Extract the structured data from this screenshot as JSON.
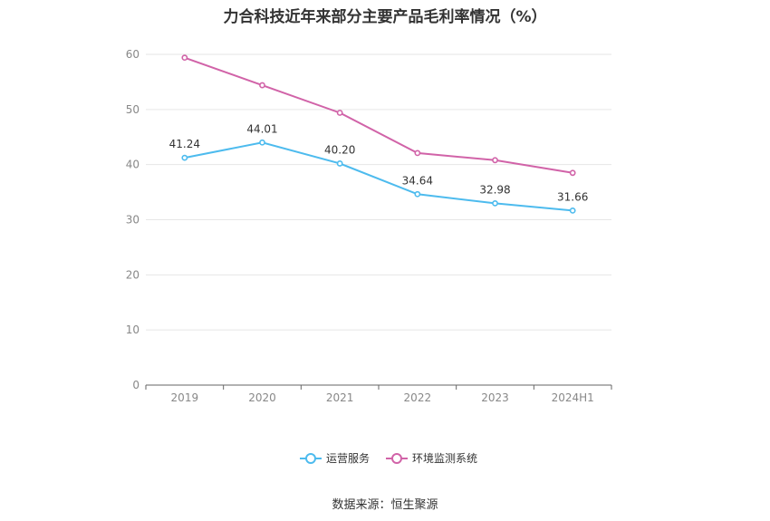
{
  "chart_data": {
    "type": "line",
    "title": "力合科技近年来部分主要产品毛利率情况（%）",
    "categories": [
      "2019",
      "2020",
      "2021",
      "2022",
      "2023",
      "2024H1"
    ],
    "ylim": [
      0,
      60
    ],
    "yticks": [
      0,
      10,
      20,
      30,
      40,
      50,
      60
    ],
    "grid": true,
    "legend_position": "bottom",
    "series": [
      {
        "name": "运营服务",
        "color": "#4dbbee",
        "values": [
          41.24,
          44.01,
          40.2,
          34.64,
          32.98,
          31.66
        ],
        "labels": [
          "41.24",
          "44.01",
          "40.20",
          "34.64",
          "32.98",
          "31.66"
        ]
      },
      {
        "name": "环境监测系统",
        "color": "#d163a8",
        "values": [
          59.4,
          54.4,
          49.4,
          42.1,
          40.8,
          38.5
        ]
      }
    ]
  },
  "source": "数据来源：恒生聚源"
}
